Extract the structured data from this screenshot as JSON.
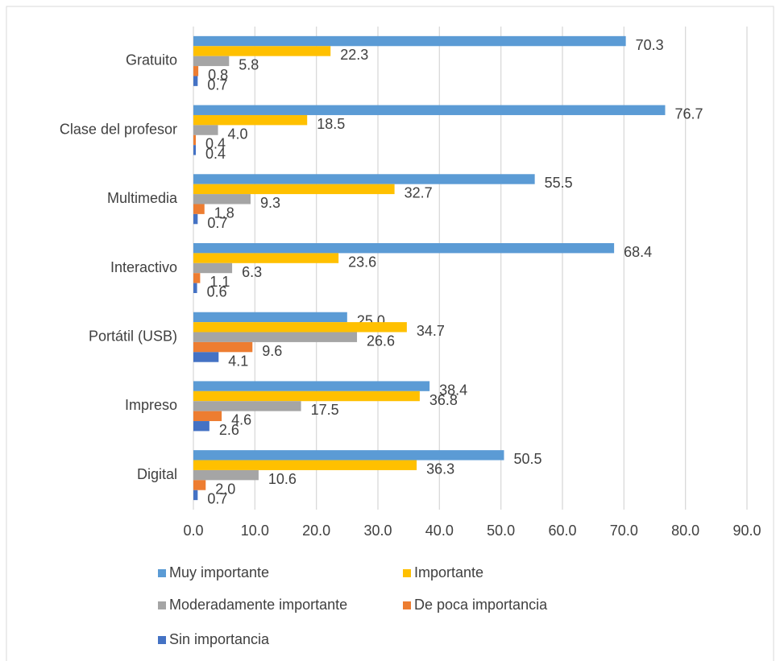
{
  "chart_data": {
    "type": "barh",
    "categories": [
      "Gratuito",
      "Clase del profesor",
      "Multimedia",
      "Interactivo",
      "Portátil (USB)",
      "Impreso",
      "Digital"
    ],
    "series": [
      {
        "name": "Muy importante",
        "color": "#5b9bd5",
        "values": [
          70.3,
          76.7,
          55.5,
          68.4,
          25.0,
          38.4,
          50.5
        ],
        "value_labels": [
          "70.3",
          "76.7",
          "55.5",
          "68.4",
          "25.0",
          "38.4",
          "50.5"
        ]
      },
      {
        "name": "Importante",
        "color": "#ffc000",
        "values": [
          22.3,
          18.5,
          32.7,
          23.6,
          34.7,
          36.8,
          36.3
        ],
        "value_labels": [
          "22.3",
          "18.5",
          "32.7",
          "23.6",
          "34.7",
          "36.8",
          "36.3"
        ]
      },
      {
        "name": "Moderadamente importante",
        "color": "#a5a5a5",
        "values": [
          5.8,
          4.0,
          9.3,
          6.3,
          26.6,
          17.5,
          10.6
        ],
        "value_labels": [
          "5.8",
          "4.0",
          "9.3",
          "6.3",
          "26.6",
          "17.5",
          "10.6"
        ]
      },
      {
        "name": "De poca importancia",
        "color": "#ed7d31",
        "values": [
          0.8,
          0.4,
          1.8,
          1.1,
          9.6,
          4.6,
          2.0
        ],
        "value_labels": [
          "0.8",
          "0.4",
          "1.8",
          "1.1",
          "9.6",
          "4.6",
          "2.0"
        ]
      },
      {
        "name": "Sin importancia",
        "color": "#4472c4",
        "values": [
          0.7,
          0.4,
          0.7,
          0.6,
          4.1,
          2.6,
          0.7
        ],
        "value_labels": [
          "0.7",
          "0.4",
          "0.7",
          "0.6",
          "4.1",
          "2.6",
          "0.7"
        ]
      }
    ],
    "xlim": [
      0,
      90
    ],
    "xticks": [
      {
        "value": 0,
        "label": "0.0"
      },
      {
        "value": 10,
        "label": "10.0"
      },
      {
        "value": 20,
        "label": "20.0"
      },
      {
        "value": 30,
        "label": "30.0"
      },
      {
        "value": 40,
        "label": "40.0"
      },
      {
        "value": 50,
        "label": "50.0"
      },
      {
        "value": 60,
        "label": "60.0"
      },
      {
        "value": 70,
        "label": "70.0"
      },
      {
        "value": 80,
        "label": "80.0"
      },
      {
        "value": 90,
        "label": "90.0"
      }
    ],
    "grid": true,
    "legend": "bottom"
  }
}
